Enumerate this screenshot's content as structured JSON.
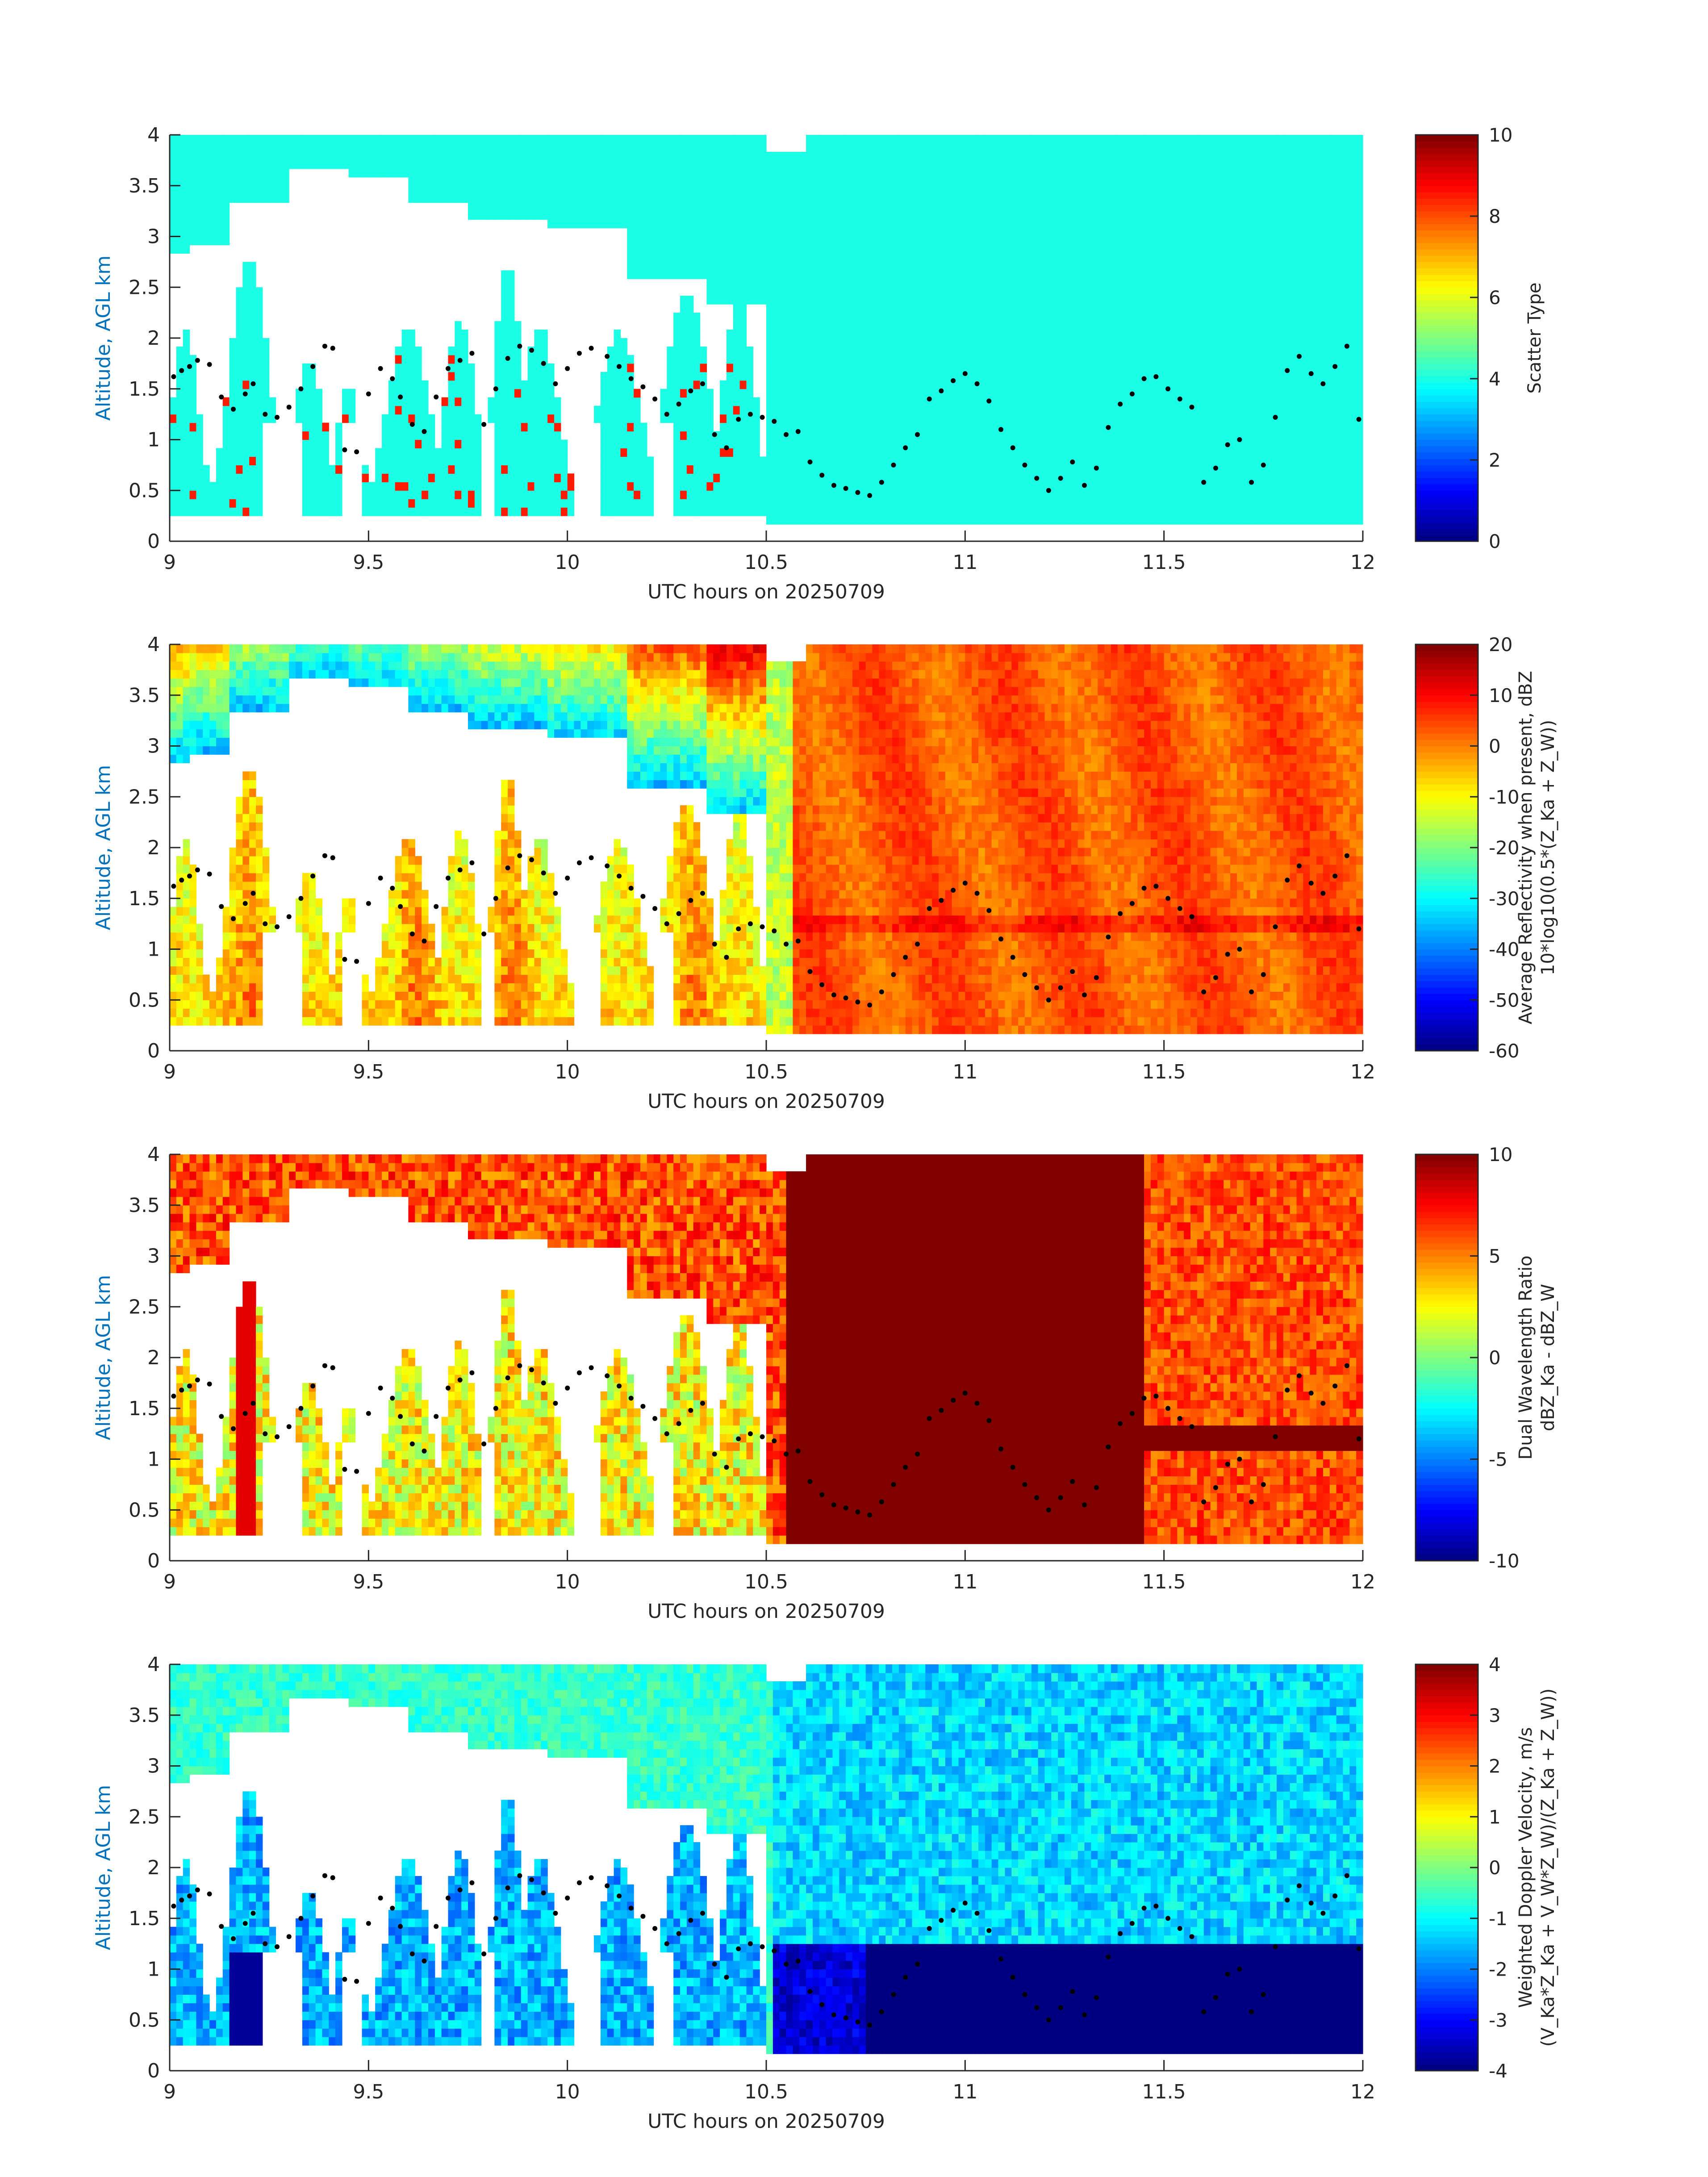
{
  "chart_data": [
    {
      "type": "heatmap",
      "title": "",
      "xlabel": "UTC hours on 20250709",
      "ylabel": "Altitude, AGL km",
      "xlim": [
        9,
        12
      ],
      "ylim": [
        0,
        4
      ],
      "xticks": [
        "9",
        "9.5",
        "10",
        "10.5",
        "11",
        "11.5",
        "12"
      ],
      "yticks": [
        "0",
        "0.5",
        "1",
        "1.5",
        "2",
        "2.5",
        "3",
        "3.5",
        "4"
      ],
      "colorbar": {
        "label_lines": [
          "Scatter Type"
        ],
        "range": [
          0,
          10
        ],
        "ticks": [
          "0",
          "2",
          "4",
          "6",
          "8",
          "10"
        ],
        "colormap": "jet"
      },
      "dominant_value": 4,
      "grid": false
    },
    {
      "type": "heatmap",
      "title": "",
      "xlabel": "UTC hours on 20250709",
      "ylabel": "Altitude, AGL km",
      "xlim": [
        9,
        12
      ],
      "ylim": [
        0,
        4
      ],
      "xticks": [
        "9",
        "9.5",
        "10",
        "10.5",
        "11",
        "11.5",
        "12"
      ],
      "yticks": [
        "0",
        "0.5",
        "1",
        "1.5",
        "2",
        "2.5",
        "3",
        "3.5",
        "4"
      ],
      "colorbar": {
        "label_lines": [
          "Average Reflectivity when present, dBZ",
          "10*log10(0.5*(Z_Ka + Z_W))"
        ],
        "range": [
          -60,
          20
        ],
        "ticks": [
          "-60",
          "-50",
          "-40",
          "-30",
          "-20",
          "-10",
          "0",
          "10",
          "20"
        ],
        "colormap": "jet"
      },
      "grid": false
    },
    {
      "type": "heatmap",
      "title": "",
      "xlabel": "UTC hours on 20250709",
      "ylabel": "Altitude, AGL km",
      "xlim": [
        9,
        12
      ],
      "ylim": [
        0,
        4
      ],
      "xticks": [
        "9",
        "9.5",
        "10",
        "10.5",
        "11",
        "11.5",
        "12"
      ],
      "yticks": [
        "0",
        "0.5",
        "1",
        "1.5",
        "2",
        "2.5",
        "3",
        "3.5",
        "4"
      ],
      "colorbar": {
        "label_lines": [
          "Dual Wavelength Ratio",
          "dBZ_Ka - dBZ_W"
        ],
        "range": [
          -10,
          10
        ],
        "ticks": [
          "-10",
          "-5",
          "0",
          "5",
          "10"
        ],
        "colormap": "jet"
      },
      "grid": false
    },
    {
      "type": "heatmap",
      "title": "",
      "xlabel": "UTC hours on 20250709",
      "ylabel": "Altitude, AGL km",
      "xlim": [
        9,
        12
      ],
      "ylim": [
        0,
        4
      ],
      "xticks": [
        "9",
        "9.5",
        "10",
        "10.5",
        "11",
        "11.5",
        "12"
      ],
      "yticks": [
        "0",
        "0.5",
        "1",
        "1.5",
        "2",
        "2.5",
        "3",
        "3.5",
        "4"
      ],
      "colorbar": {
        "label_lines": [
          "Weighted Doppler Velocity, m/s",
          "(V_Ka*Z_Ka + V_W*Z_W)/(Z_Ka + Z_W))"
        ],
        "range": [
          -4,
          4
        ],
        "ticks": [
          "-4",
          "-3",
          "-2",
          "-1",
          "0",
          "1",
          "2",
          "3",
          "4"
        ],
        "colormap": "jet"
      },
      "grid": false
    }
  ],
  "overlay_points": {
    "color": "#000000",
    "x": [
      9.01,
      9.03,
      9.05,
      9.07,
      9.1,
      9.13,
      9.16,
      9.19,
      9.21,
      9.24,
      9.27,
      9.3,
      9.33,
      9.36,
      9.39,
      9.41,
      9.44,
      9.47,
      9.5,
      9.53,
      9.56,
      9.58,
      9.61,
      9.64,
      9.67,
      9.7,
      9.73,
      9.76,
      9.79,
      9.82,
      9.85,
      9.88,
      9.91,
      9.94,
      9.97,
      10.0,
      10.03,
      10.06,
      10.1,
      10.13,
      10.16,
      10.19,
      10.22,
      10.25,
      10.28,
      10.31,
      10.34,
      10.37,
      10.4,
      10.43,
      10.46,
      10.49,
      10.52,
      10.55,
      10.58,
      10.61,
      10.64,
      10.67,
      10.7,
      10.73,
      10.76,
      10.79,
      10.82,
      10.85,
      10.88,
      10.91,
      10.94,
      10.97,
      11.0,
      11.03,
      11.06,
      11.09,
      11.12,
      11.15,
      11.18,
      11.21,
      11.24,
      11.27,
      11.3,
      11.33,
      11.36,
      11.39,
      11.42,
      11.45,
      11.48,
      11.51,
      11.54,
      11.57,
      11.6,
      11.63,
      11.66,
      11.69,
      11.72,
      11.75,
      11.78,
      11.81,
      11.84,
      11.87,
      11.9,
      11.93,
      11.96,
      11.99
    ],
    "y": [
      1.62,
      1.68,
      1.72,
      1.78,
      1.74,
      1.42,
      1.3,
      1.45,
      1.55,
      1.25,
      1.22,
      1.32,
      1.5,
      1.72,
      1.92,
      1.9,
      0.9,
      0.88,
      1.45,
      1.7,
      1.6,
      1.42,
      1.15,
      1.08,
      1.42,
      1.7,
      1.78,
      1.85,
      1.15,
      1.5,
      1.8,
      1.92,
      1.88,
      1.75,
      1.55,
      1.7,
      1.85,
      1.9,
      1.82,
      1.72,
      1.6,
      1.52,
      1.4,
      1.25,
      1.35,
      1.48,
      1.55,
      1.05,
      0.92,
      1.2,
      1.25,
      1.22,
      1.18,
      1.05,
      1.08,
      0.78,
      0.65,
      0.55,
      0.52,
      0.48,
      0.45,
      0.58,
      0.75,
      0.92,
      1.05,
      1.4,
      1.48,
      1.58,
      1.65,
      1.55,
      1.38,
      1.1,
      0.92,
      0.75,
      0.62,
      0.5,
      0.62,
      0.78,
      0.55,
      0.72,
      1.12,
      1.35,
      1.45,
      1.6,
      1.62,
      1.5,
      1.4,
      1.32,
      0.58,
      0.72,
      0.95,
      1.0,
      0.58,
      0.75,
      1.22,
      1.68,
      1.82,
      1.65,
      1.55,
      1.72,
      1.92,
      1.2
    ]
  }
}
